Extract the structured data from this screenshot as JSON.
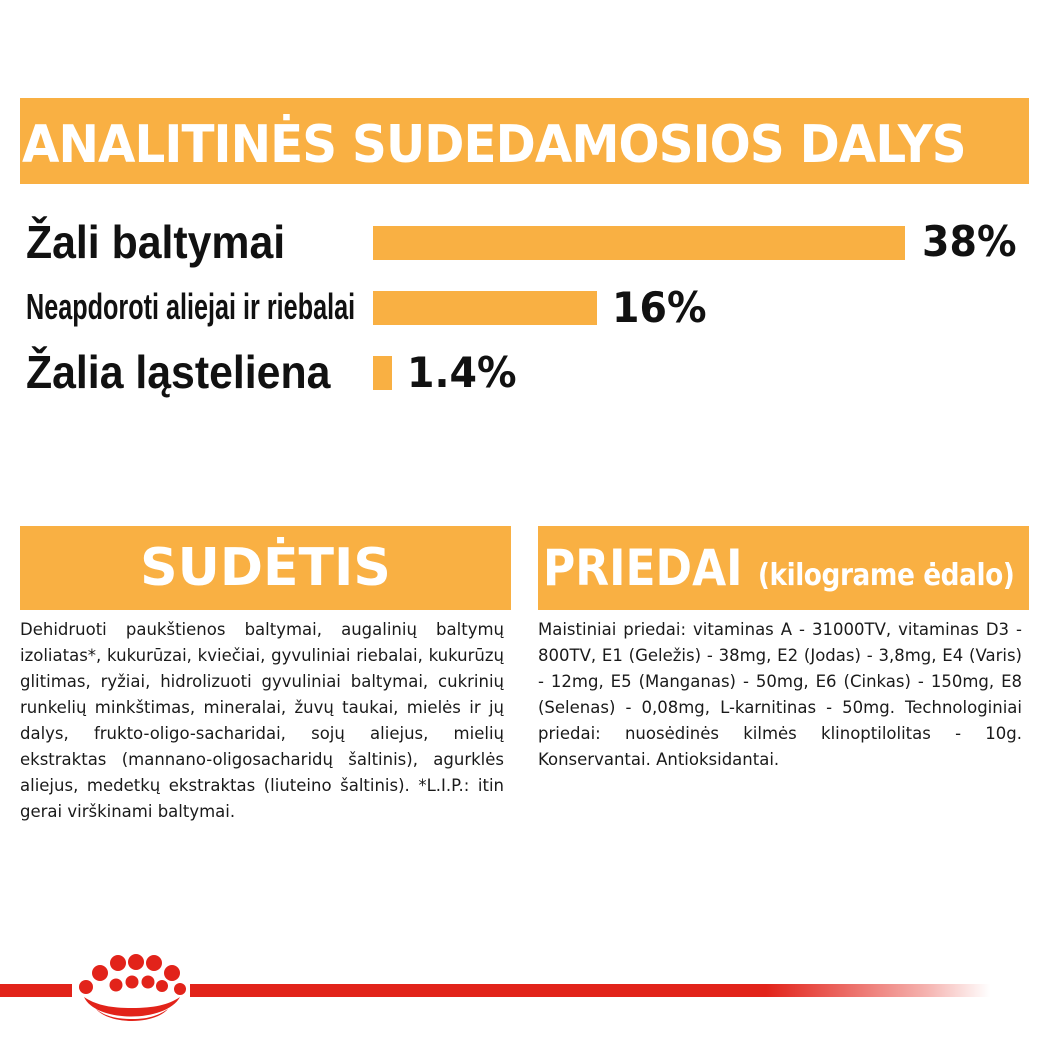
{
  "analytical": {
    "title": "ANALITINĖS SUDEDAMOSIOS DALYS",
    "rows": [
      {
        "label": "Žali baltymai",
        "value": "38%",
        "level": 38
      },
      {
        "label": "Neapdoroti aliejai ir riebalai",
        "value": "16%",
        "level": 16
      },
      {
        "label": "Žalia ląsteliena",
        "value": "1.4%",
        "level": 1.4
      }
    ]
  },
  "composition": {
    "title": "SUDĖTIS",
    "text": "Dehidruoti paukštienos baltymai, augalinių baltymų izoliatas*, kukurūzai, kviečiai, gyvuliniai riebalai, kukurūzų glitimas, ryžiai, hidrolizuoti gyvuliniai baltymai, cukrinių runkelių minkštimas, mineralai, žuvų taukai, mielės ir jų dalys, frukto-oligo-sacharidai, sojų aliejus, mielių ekstraktas (mannano-oligosacharidų šaltinis), agurklės aliejus, medetkų ekstraktas (liuteino šaltinis). *L.I.P.: itin gerai virškinami baltymai."
  },
  "additives": {
    "title": "PRIEDAI",
    "subtitle": "(kilograme ėdalo)",
    "text": "Maistiniai priedai: vitaminas A - 31000TV, vitaminas D3 - 800TV, E1 (Geležis) - 38mg, E2 (Jodas) - 3,8mg, E4 (Varis) - 12mg, E5 (Manganas) - 50mg, E6 (Cinkas) - 150mg, E8 (Selenas) - 0,08mg, L-karnitinas - 50mg. Technologiniai priedai: nuosėdinės kilmės klinoptilolitas - 10g. Konservantai. Antioksidantai."
  },
  "colors": {
    "accent": "#f9b043",
    "brand_red": "#e2231a",
    "text": "#111111",
    "white": "#ffffff"
  },
  "icons": {
    "brand_logo": "royal-canin-crown-icon"
  }
}
